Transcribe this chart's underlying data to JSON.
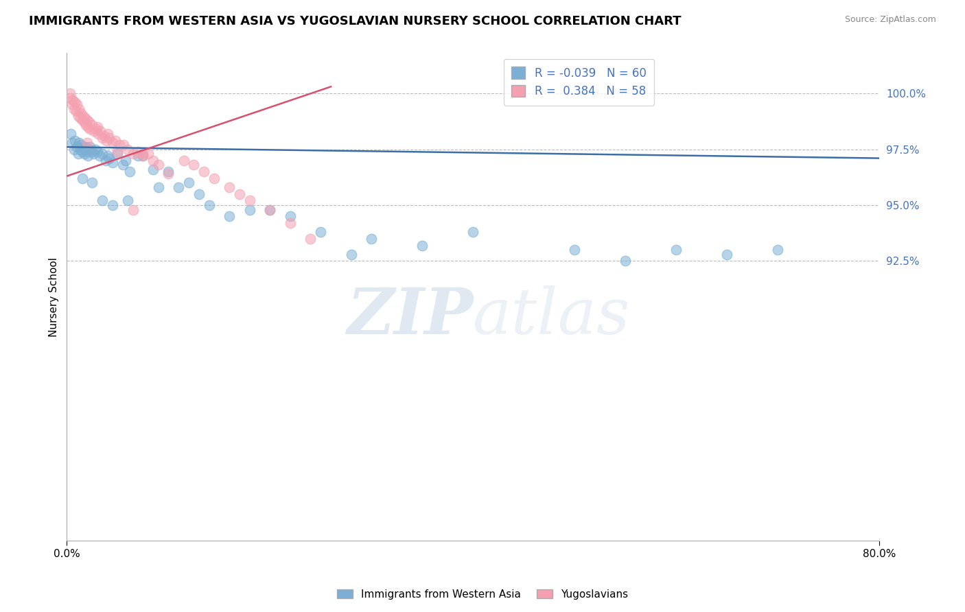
{
  "title": "IMMIGRANTS FROM WESTERN ASIA VS YUGOSLAVIAN NURSERY SCHOOL CORRELATION CHART",
  "source": "Source: ZipAtlas.com",
  "ylabel": "Nursery School",
  "xlim": [
    0.0,
    80.0
  ],
  "ylim": [
    80.0,
    101.8
  ],
  "blue_R": -0.039,
  "blue_N": 60,
  "pink_R": 0.384,
  "pink_N": 58,
  "blue_color": "#7bafd4",
  "pink_color": "#f4a0b0",
  "blue_line_color": "#3a6ea5",
  "pink_line_color": "#d94f6e",
  "watermark_zip": "ZIP",
  "watermark_atlas": "atlas",
  "ytick_vals": [
    92.5,
    95.0,
    97.5,
    100.0
  ],
  "ytick_labels": [
    "92.5%",
    "95.0%",
    "97.5%",
    "100.0%"
  ],
  "blue_line_x": [
    0.0,
    80.0
  ],
  "blue_line_y": [
    97.6,
    97.1
  ],
  "pink_line_x": [
    0.0,
    26.0
  ],
  "pink_line_y": [
    96.3,
    100.3
  ],
  "blue_x": [
    0.4,
    0.5,
    0.7,
    0.8,
    1.0,
    1.1,
    1.2,
    1.3,
    1.4,
    1.5,
    1.6,
    1.7,
    1.8,
    1.9,
    2.0,
    2.1,
    2.2,
    2.3,
    2.5,
    2.6,
    2.8,
    3.0,
    3.2,
    3.5,
    3.8,
    4.0,
    4.2,
    4.5,
    5.0,
    5.5,
    5.8,
    6.2,
    7.0,
    7.5,
    8.5,
    9.0,
    10.0,
    11.0,
    12.0,
    13.0,
    14.0,
    16.0,
    18.0,
    20.0,
    22.0,
    25.0,
    28.0,
    30.0,
    35.0,
    40.0,
    50.0,
    55.0,
    60.0,
    65.0,
    70.0,
    1.5,
    2.5,
    3.5,
    4.5,
    6.0
  ],
  "blue_y": [
    98.2,
    97.8,
    97.5,
    97.9,
    97.6,
    97.3,
    97.8,
    97.5,
    97.7,
    97.4,
    97.6,
    97.3,
    97.5,
    97.6,
    97.4,
    97.2,
    97.5,
    97.6,
    97.4,
    97.3,
    97.5,
    97.4,
    97.2,
    97.3,
    97.0,
    97.2,
    97.1,
    96.9,
    97.3,
    96.8,
    97.0,
    96.5,
    97.2,
    97.2,
    96.6,
    95.8,
    96.5,
    95.8,
    96.0,
    95.5,
    95.0,
    94.5,
    94.8,
    94.8,
    94.5,
    93.8,
    92.8,
    93.5,
    93.2,
    93.8,
    93.0,
    92.5,
    93.0,
    92.8,
    93.0,
    96.2,
    96.0,
    95.2,
    95.0,
    95.2
  ],
  "pink_x": [
    0.3,
    0.4,
    0.5,
    0.6,
    0.7,
    0.8,
    0.9,
    1.0,
    1.1,
    1.2,
    1.3,
    1.4,
    1.5,
    1.6,
    1.7,
    1.8,
    1.9,
    2.0,
    2.1,
    2.2,
    2.3,
    2.5,
    2.7,
    2.9,
    3.1,
    3.3,
    3.5,
    3.7,
    3.9,
    4.2,
    4.5,
    4.8,
    5.2,
    5.6,
    6.0,
    6.5,
    7.0,
    7.5,
    8.0,
    8.5,
    9.0,
    10.0,
    11.5,
    12.5,
    13.5,
    14.5,
    16.0,
    17.0,
    18.0,
    20.0,
    22.0,
    24.0,
    2.0,
    3.0,
    4.0,
    5.0,
    7.5,
    6.5
  ],
  "pink_y": [
    100.0,
    99.8,
    99.5,
    99.7,
    99.3,
    99.6,
    99.2,
    99.5,
    99.0,
    99.3,
    98.9,
    99.1,
    98.8,
    99.0,
    98.7,
    98.9,
    98.6,
    98.8,
    98.5,
    98.7,
    98.4,
    98.6,
    98.3,
    98.4,
    98.2,
    98.3,
    98.0,
    98.1,
    97.9,
    98.0,
    97.8,
    97.9,
    97.7,
    97.7,
    97.5,
    97.3,
    97.4,
    97.2,
    97.3,
    97.0,
    96.8,
    96.4,
    97.0,
    96.8,
    96.5,
    96.2,
    95.8,
    95.5,
    95.2,
    94.8,
    94.2,
    93.5,
    97.8,
    98.5,
    98.2,
    97.4,
    97.3,
    94.8
  ]
}
